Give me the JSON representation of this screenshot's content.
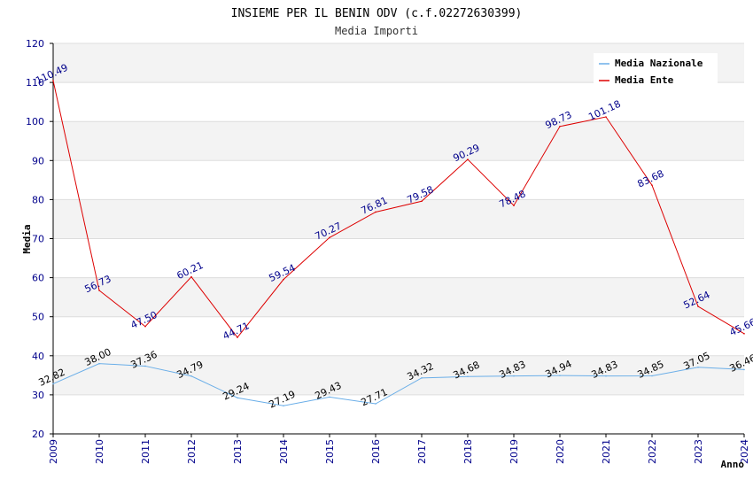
{
  "chart_data": {
    "type": "line",
    "title": "INSIEME PER IL BENIN ODV (c.f.02272630399)",
    "subtitle": "Media Importi",
    "xlabel": "Anno",
    "ylabel": "Media",
    "ylim": [
      20,
      120
    ],
    "yticks": [
      20,
      30,
      40,
      50,
      60,
      70,
      80,
      90,
      100,
      110,
      120
    ],
    "x": [
      "2009",
      "2010",
      "2011",
      "2012",
      "2013",
      "2014",
      "2015",
      "2016",
      "2017",
      "2018",
      "2019",
      "2020",
      "2021",
      "2022",
      "2023",
      "2024"
    ],
    "legend_position": "top-right",
    "series": [
      {
        "name": "Media Nazionale",
        "color": "#6aaee8",
        "values": [
          32.82,
          38.0,
          37.36,
          34.79,
          29.24,
          27.19,
          29.43,
          27.71,
          34.32,
          34.68,
          34.83,
          34.94,
          34.83,
          34.85,
          37.05,
          36.46
        ],
        "labels": [
          "32.82",
          "38.00",
          "37.36",
          "34.79",
          "29.24",
          "27.19",
          "29.43",
          "27.71",
          "34.32",
          "34.68",
          "34.83",
          "34.94",
          "34.83",
          "34.85",
          "37.05",
          "36.46"
        ]
      },
      {
        "name": "Media Ente",
        "color": "#dd0000",
        "values": [
          110.49,
          56.73,
          47.5,
          60.21,
          44.71,
          59.54,
          70.27,
          76.81,
          79.58,
          90.29,
          78.48,
          98.73,
          101.18,
          83.68,
          52.64,
          45.66
        ],
        "labels": [
          "110.49",
          "56.73",
          "47.50",
          "60.21",
          "44.71",
          "59.54",
          "70.27",
          "76.81",
          "79.58",
          "90.29",
          "78.48",
          "98.73",
          "101.18",
          "83.68",
          "52.64",
          "45.66"
        ]
      }
    ]
  }
}
